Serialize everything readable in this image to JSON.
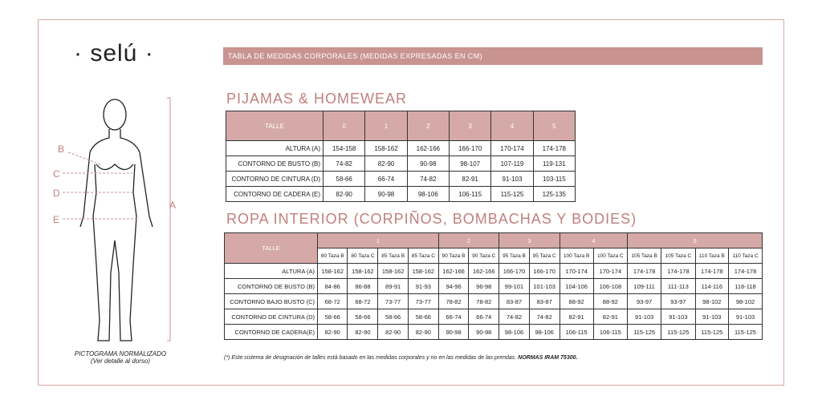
{
  "brand": "· selú ·",
  "pictogram": {
    "labels": [
      "B",
      "C",
      "D",
      "E",
      "A"
    ],
    "caption": "PICTOGRAMA NORMALIZADO",
    "note": "(Ver detalle al dorso)"
  },
  "banner": "TABLA DE MEDIDAS CORPORALES (MEDIDAS EXPRESADAS EN CM)",
  "tables": [
    {
      "title": "PIJAMAS & HOMEWEAR",
      "header": [
        "TALLE",
        "0",
        "1",
        "2",
        "3",
        "4",
        "5"
      ],
      "rows": [
        [
          "ALTURA (A)",
          "154-158",
          "158-162",
          "162-166",
          "166-170",
          "170-174",
          "174-178"
        ],
        [
          "CONTORNO DE BUSTO (B)",
          "74-82",
          "82-90",
          "90-98",
          "98-107",
          "107-119",
          "119-131"
        ],
        [
          "CONTORNO DE CINTURA (D)",
          "58-66",
          "66-74",
          "74-82",
          "82-91",
          "91-103",
          "103-115"
        ],
        [
          "CONTORNO DE CADERA (E)",
          "82-90",
          "90-98",
          "98-106",
          "106-115",
          "115-125",
          "125-135"
        ]
      ]
    },
    {
      "title": "ROPA INTERIOR (CORPIÑOS, BOMBACHAS Y BODIES)",
      "header": "TALLE",
      "groups": [
        {
          "label": "1",
          "sizes": [
            "80 Taza B",
            "80 Taza C",
            "85 Taza B",
            "85 Taza C"
          ]
        },
        {
          "label": "2",
          "sizes": [
            "90 Taza B",
            "90 Taza C"
          ]
        },
        {
          "label": "3",
          "sizes": [
            "95 Taza B",
            "95 Taza C"
          ]
        },
        {
          "label": "4",
          "sizes": [
            "100 Taza B",
            "100 Taza C"
          ]
        },
        {
          "label": "5",
          "sizes": [
            "105 Taza B",
            "105 Taza C",
            "110 Taza B",
            "110 Taza C"
          ]
        }
      ],
      "rows": [
        [
          "ALTURA (A)",
          "158-162",
          "158-162",
          "158-162",
          "158-162",
          "162-166",
          "162-166",
          "166-170",
          "166-170",
          "170-174",
          "170-174",
          "174-178",
          "174-178",
          "174-178",
          "174-178"
        ],
        [
          "CONTORNO DE BUSTO (B)",
          "84-86",
          "86-88",
          "89-91",
          "91-93",
          "94-96",
          "96-98",
          "99-101",
          "101-103",
          "104-106",
          "106-108",
          "109-111",
          "111-113",
          "114-116",
          "116-118"
        ],
        [
          "CONTORNO BAJO BUSTO (C)",
          "68-72",
          "68-72",
          "73-77",
          "73-77",
          "78-82",
          "78-82",
          "83-87",
          "83-87",
          "88-92",
          "88-92",
          "93-97",
          "93-97",
          "98-102",
          "98-102"
        ],
        [
          "CONTORNO DE CINTURA (D)",
          "58-66",
          "58-66",
          "58-66",
          "58-66",
          "66-74",
          "66-74",
          "74-82",
          "74-82",
          "82-91",
          "82-91",
          "91-103",
          "91-103",
          "91-103",
          "91-103"
        ],
        [
          "CONTORNO DE CADERA(E)",
          "82-90",
          "82-90",
          "82-90",
          "82-90",
          "90-98",
          "90-98",
          "98-106",
          "98-106",
          "106-115",
          "106-115",
          "115-125",
          "115-125",
          "115-125",
          "115-125"
        ]
      ]
    }
  ],
  "footnote": {
    "text": "(*) Este sistema de designación de talles está basado en las medidas corporales y no en las medidas de las prendas. ",
    "bold": "NORMAS IRAM 75300."
  }
}
